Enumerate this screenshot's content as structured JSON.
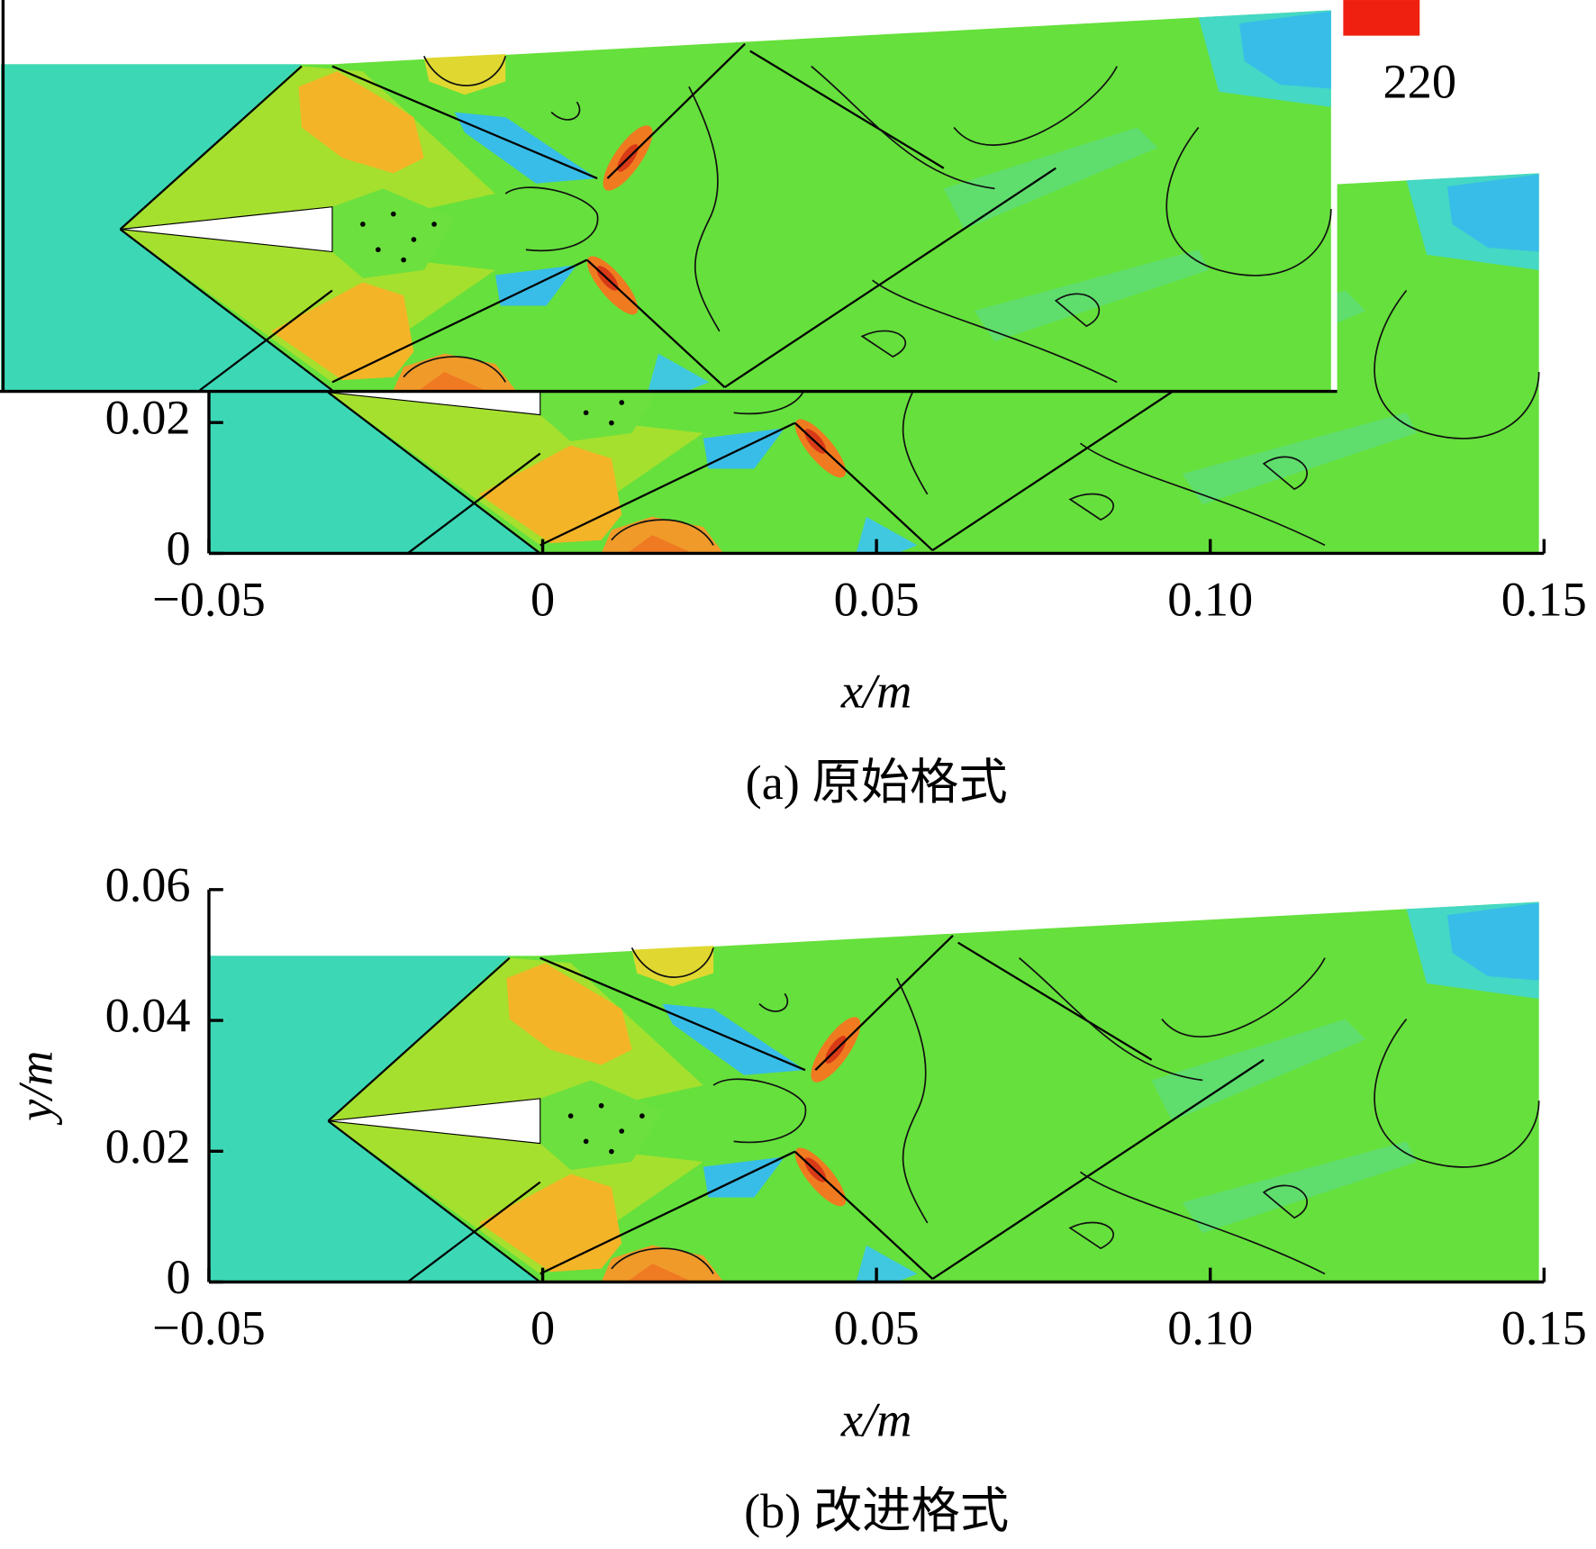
{
  "chart_data": [
    {
      "type": "contour",
      "caption": "(a) 原始格式",
      "xlabel": "x/m",
      "xlim": [
        -0.05,
        0.15
      ],
      "xticks": [
        {
          "value": -0.05,
          "label": "−0.05"
        },
        0,
        0.05,
        {
          "value": 0.1,
          "label": "0.10"
        },
        0.15
      ],
      "ylim": [
        0,
        0.06
      ],
      "yticks": [
        0,
        0.02
      ],
      "annotations": [
        "220"
      ]
    },
    {
      "type": "contour",
      "caption": "(b) 改进格式",
      "xlabel": "x/m",
      "ylabel": "y/m",
      "xlim": [
        -0.05,
        0.15
      ],
      "xticks": [
        {
          "value": -0.05,
          "label": "−0.05"
        },
        0,
        0.05,
        {
          "value": 0.1,
          "label": "0.10"
        },
        0.15
      ],
      "ylim": [
        0,
        0.06
      ],
      "yticks": [
        0,
        0.02,
        0.04,
        0.06
      ]
    }
  ]
}
